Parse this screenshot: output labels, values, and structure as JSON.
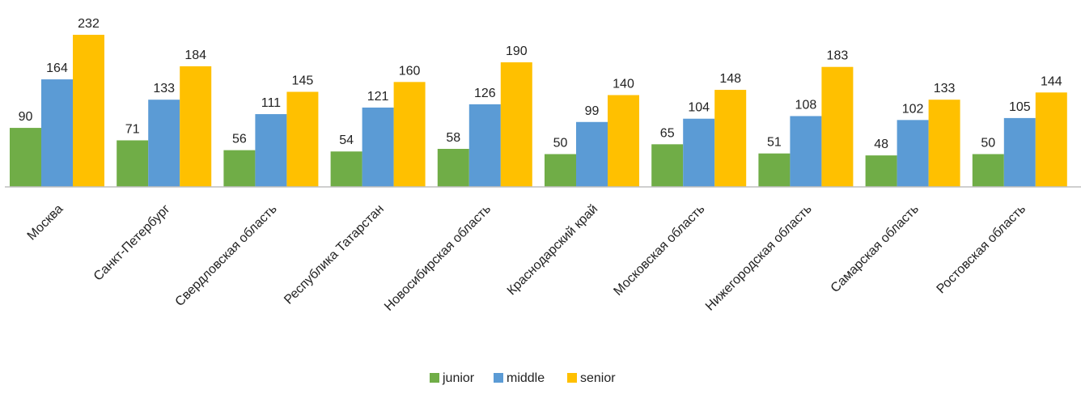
{
  "chart_data": {
    "type": "bar",
    "categories": [
      "Москва",
      "Санкт-Петербург",
      "Свердловская область",
      "Республика Татарстан",
      "Новосибирская область",
      "Краснодарский край",
      "Московская область",
      "Нижегородская область",
      "Самарская область",
      "Ростовская область"
    ],
    "series": [
      {
        "name": "junior",
        "color": "#70AD47",
        "values": [
          90,
          71,
          56,
          54,
          58,
          50,
          65,
          51,
          48,
          50
        ]
      },
      {
        "name": "middle",
        "color": "#5B9BD5",
        "values": [
          164,
          133,
          111,
          121,
          126,
          99,
          104,
          108,
          102,
          105
        ]
      },
      {
        "name": "senior",
        "color": "#FFC000",
        "values": [
          232,
          184,
          145,
          160,
          190,
          140,
          148,
          183,
          133,
          144
        ]
      }
    ],
    "ylim": [
      0,
      232
    ],
    "grid": false,
    "legend": "bottom-center",
    "data_labels": true
  }
}
